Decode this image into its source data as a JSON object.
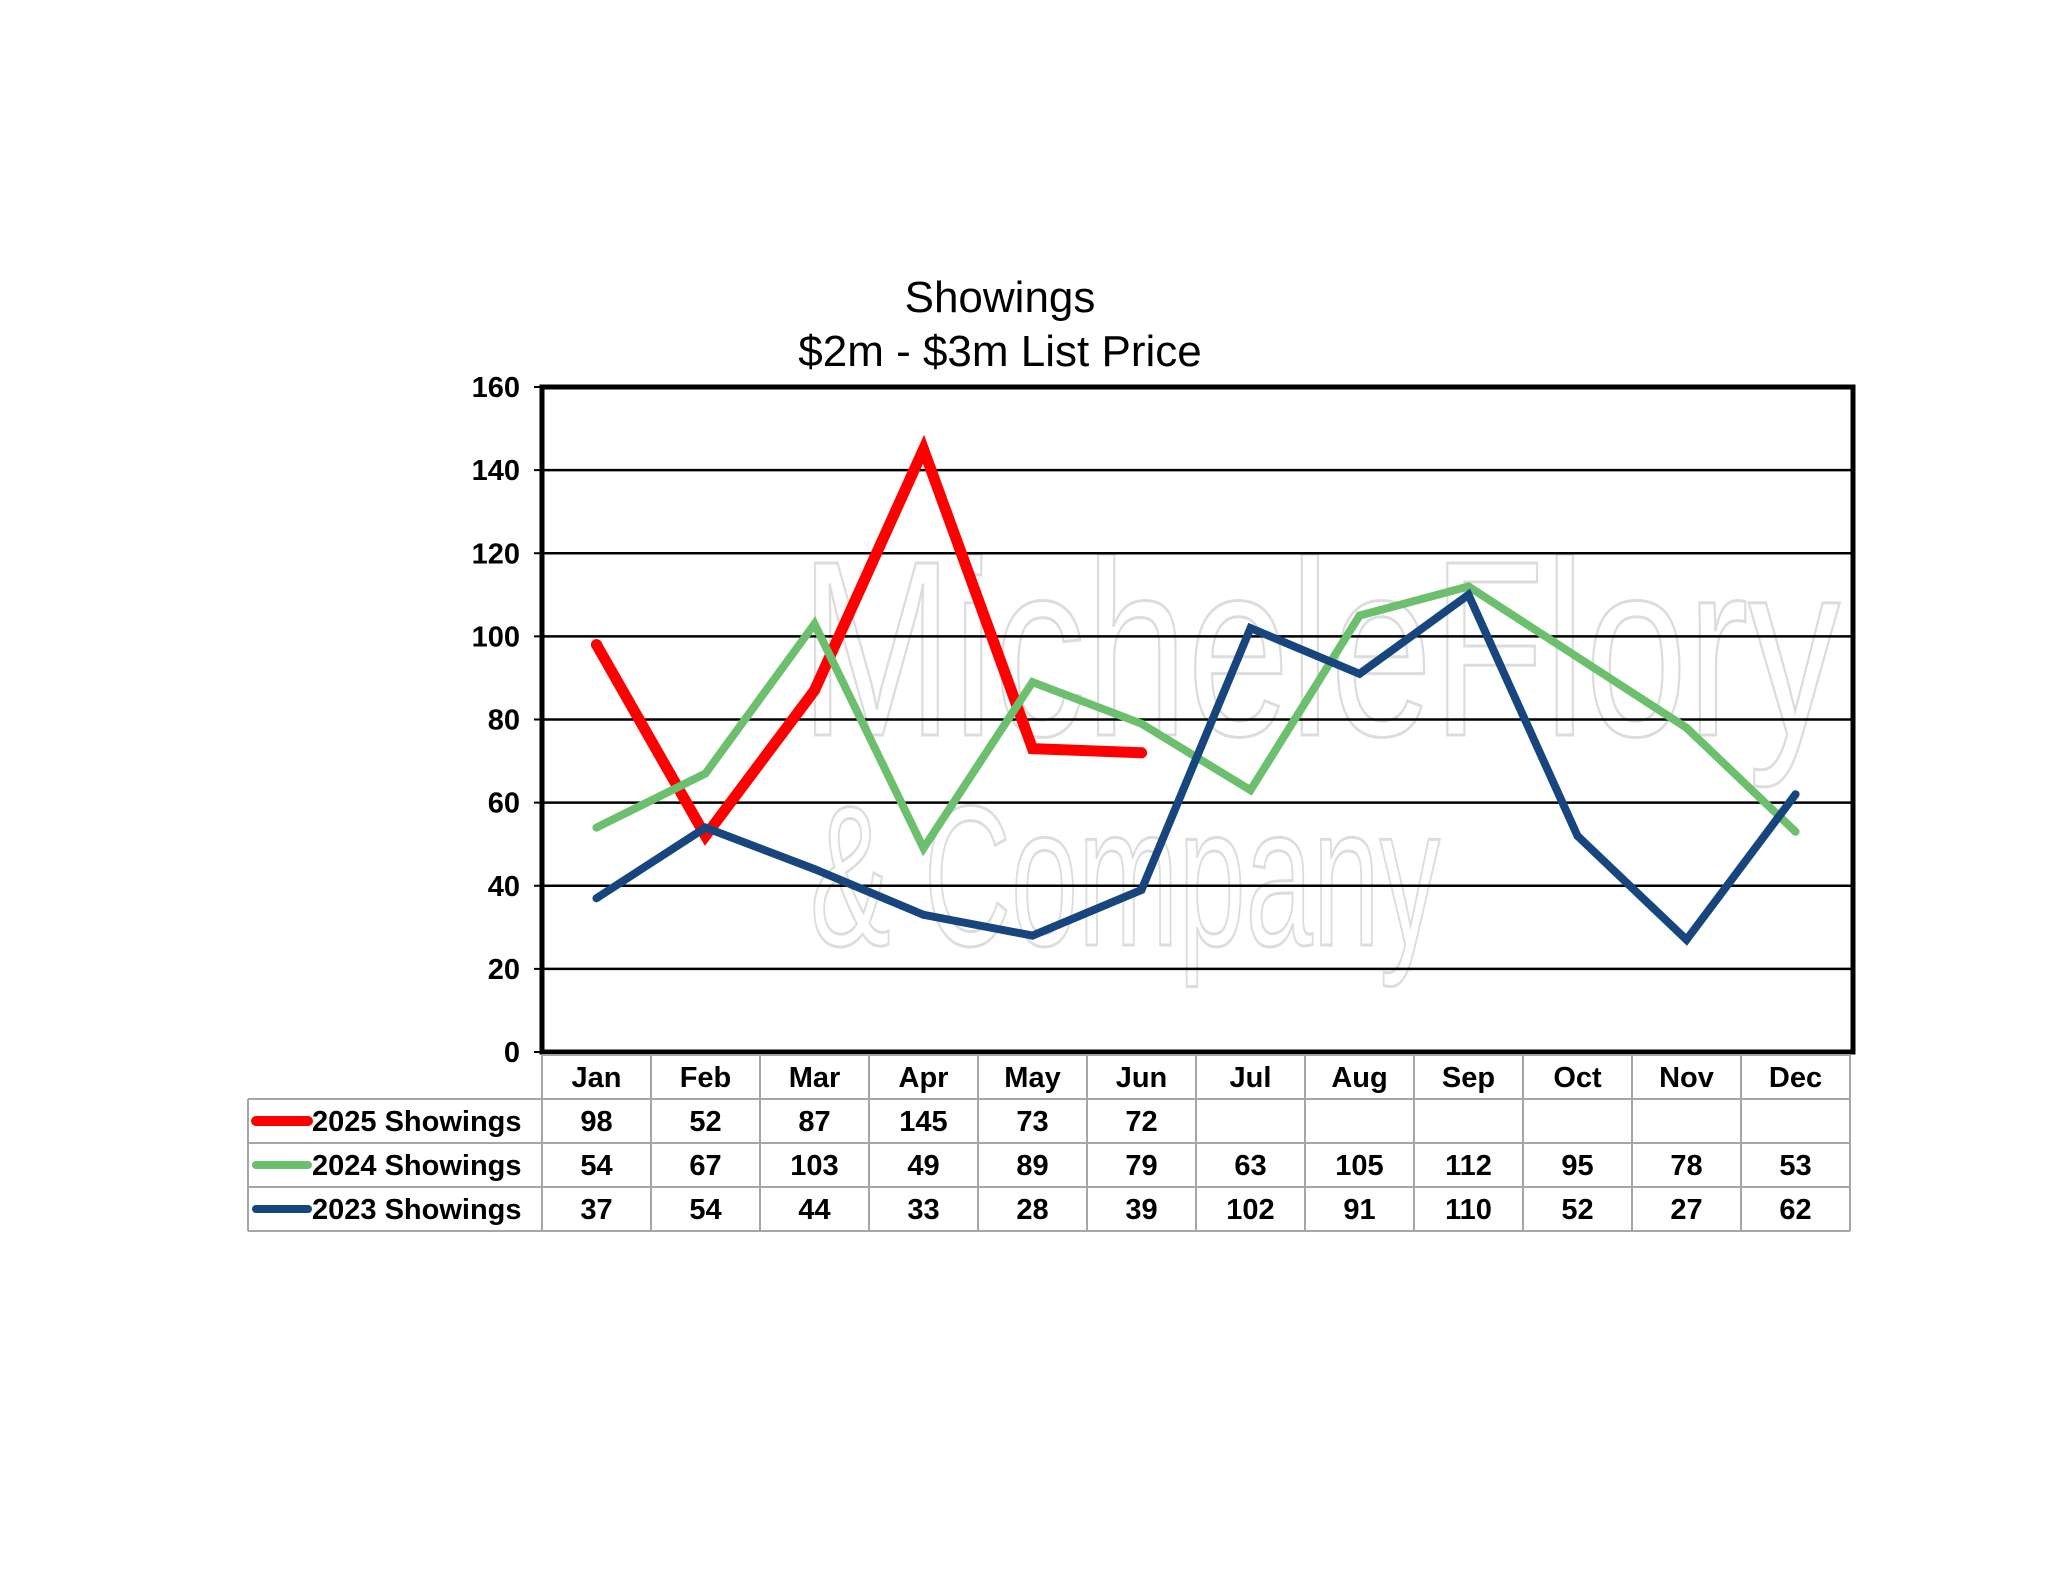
{
  "chart_data": {
    "type": "line",
    "title": "Showings",
    "subtitle": "$2m - $3m List Price",
    "categories": [
      "Jan",
      "Feb",
      "Mar",
      "Apr",
      "May",
      "Jun",
      "Jul",
      "Aug",
      "Sep",
      "Oct",
      "Nov",
      "Dec"
    ],
    "ylim": [
      0,
      160
    ],
    "yticks": [
      0,
      20,
      40,
      60,
      80,
      100,
      120,
      140,
      160
    ],
    "grid": true,
    "legend_placement": "data-table-left",
    "series": [
      {
        "name": "2025 Showings",
        "color": "#ff0000",
        "values": [
          98,
          52,
          87,
          145,
          73,
          72,
          null,
          null,
          null,
          null,
          null,
          null
        ]
      },
      {
        "name": "2024 Showings",
        "color": "#6cbf6c",
        "values": [
          54,
          67,
          103,
          49,
          89,
          79,
          63,
          105,
          112,
          95,
          78,
          53
        ]
      },
      {
        "name": "2023 Showings",
        "color": "#17457e",
        "values": [
          37,
          54,
          44,
          33,
          28,
          39,
          102,
          91,
          110,
          52,
          27,
          62
        ]
      }
    ]
  },
  "watermark": {
    "line1": "MicheleFlory",
    "line2": "& Company"
  }
}
